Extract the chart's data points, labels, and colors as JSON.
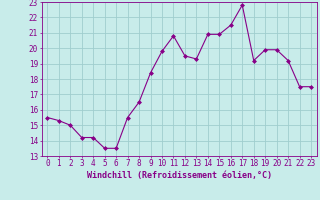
{
  "x": [
    0,
    1,
    2,
    3,
    4,
    5,
    6,
    7,
    8,
    9,
    10,
    11,
    12,
    13,
    14,
    15,
    16,
    17,
    18,
    19,
    20,
    21,
    22,
    23
  ],
  "y": [
    15.5,
    15.3,
    15.0,
    14.2,
    14.2,
    13.5,
    13.5,
    15.5,
    16.5,
    18.4,
    19.8,
    20.8,
    19.5,
    19.3,
    20.9,
    20.9,
    21.5,
    22.8,
    19.2,
    19.9,
    19.9,
    19.2,
    17.5,
    17.5
  ],
  "line_color": "#880088",
  "marker": "D",
  "marker_size": 2,
  "bg_color": "#c8ecea",
  "grid_color": "#a0cece",
  "xlabel": "Windchill (Refroidissement éolien,°C)",
  "xlabel_fontsize": 6.0,
  "ylim": [
    13,
    23
  ],
  "xlim": [
    -0.5,
    23.5
  ],
  "yticks": [
    13,
    14,
    15,
    16,
    17,
    18,
    19,
    20,
    21,
    22,
    23
  ],
  "xticks": [
    0,
    1,
    2,
    3,
    4,
    5,
    6,
    7,
    8,
    9,
    10,
    11,
    12,
    13,
    14,
    15,
    16,
    17,
    18,
    19,
    20,
    21,
    22,
    23
  ],
  "tick_fontsize": 5.5,
  "label_color": "#880088",
  "spine_color": "#880088"
}
